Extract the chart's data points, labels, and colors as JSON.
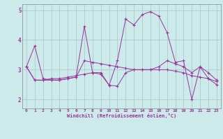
{
  "xlabel": "Windchill (Refroidissement éolien,°C)",
  "background_color": "#cceaea",
  "grid_color": "#aacccc",
  "line_color": "#993399",
  "xlim": [
    -0.5,
    23.5
  ],
  "ylim": [
    1.7,
    5.2
  ],
  "yticks": [
    2,
    3,
    4,
    5
  ],
  "ytick_labels": [
    "2",
    "3",
    "4",
    "5"
  ],
  "xticks": [
    0,
    1,
    2,
    3,
    4,
    5,
    6,
    7,
    8,
    9,
    10,
    11,
    12,
    13,
    14,
    15,
    16,
    17,
    18,
    19,
    20,
    21,
    22,
    23
  ],
  "lines": [
    [
      3.1,
      3.8,
      2.7,
      2.65,
      2.65,
      2.7,
      2.75,
      4.45,
      2.9,
      2.85,
      2.48,
      2.45,
      2.9,
      3.0,
      3.0,
      3.0,
      3.1,
      3.3,
      3.2,
      3.1,
      2.9,
      3.1,
      2.9,
      2.65
    ],
    [
      3.1,
      2.65,
      2.65,
      2.65,
      2.65,
      2.7,
      2.75,
      3.3,
      3.25,
      3.2,
      3.15,
      3.1,
      3.05,
      3.0,
      3.0,
      3.0,
      3.0,
      3.0,
      2.95,
      2.9,
      2.8,
      2.75,
      2.7,
      2.6
    ],
    [
      3.1,
      2.65,
      2.65,
      2.7,
      2.7,
      2.75,
      2.8,
      2.85,
      2.9,
      2.9,
      2.48,
      3.3,
      4.7,
      4.5,
      4.85,
      4.95,
      4.8,
      4.25,
      3.25,
      3.3,
      2.0,
      3.1,
      2.7,
      2.5
    ]
  ]
}
